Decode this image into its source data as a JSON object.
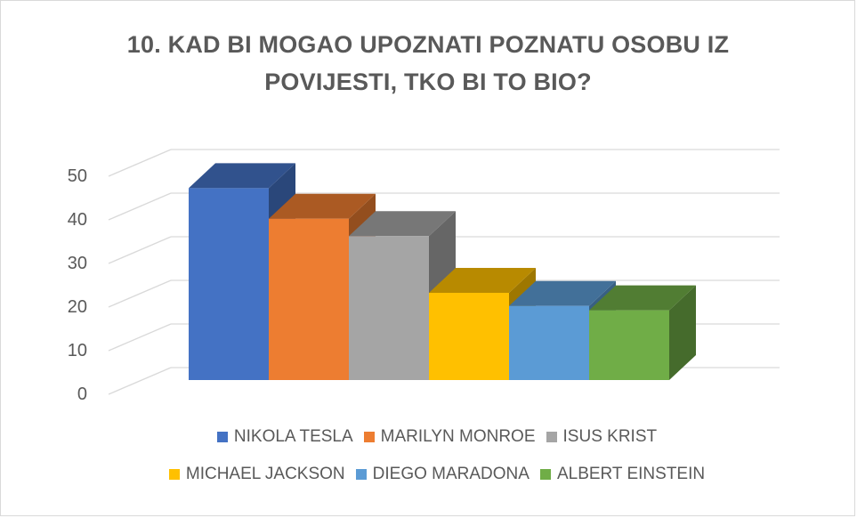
{
  "chart_data": {
    "type": "bar",
    "title": "10. KAD BI MOGAO UPOZNATI POZNATU OSOBU IZ POVIJESTI, TKO BI TO BIO?",
    "title_lines": [
      "10. KAD BI MOGAO UPOZNATI POZNATU OSOBU IZ",
      "POVIJESTI, TKO BI TO BIO?"
    ],
    "categories": [
      "NIKOLA TESLA",
      "MARILYN MONROE",
      "ISUS KRIST",
      "MICHAEL JACKSON",
      "DIEGO MARADONA",
      "ALBERT EINSTEIN"
    ],
    "values": [
      44,
      37,
      33,
      20,
      17,
      16
    ],
    "colors": [
      "#4472c4",
      "#ed7d31",
      "#a5a5a5",
      "#ffc000",
      "#5b9bd5",
      "#70ad47"
    ],
    "yticks": [
      "0",
      "10",
      "20",
      "30",
      "40",
      "50"
    ],
    "ylim": [
      0,
      50
    ],
    "xlabel": "",
    "ylabel": "",
    "grid": true,
    "legend_position": "bottom",
    "style": "3d-column"
  }
}
